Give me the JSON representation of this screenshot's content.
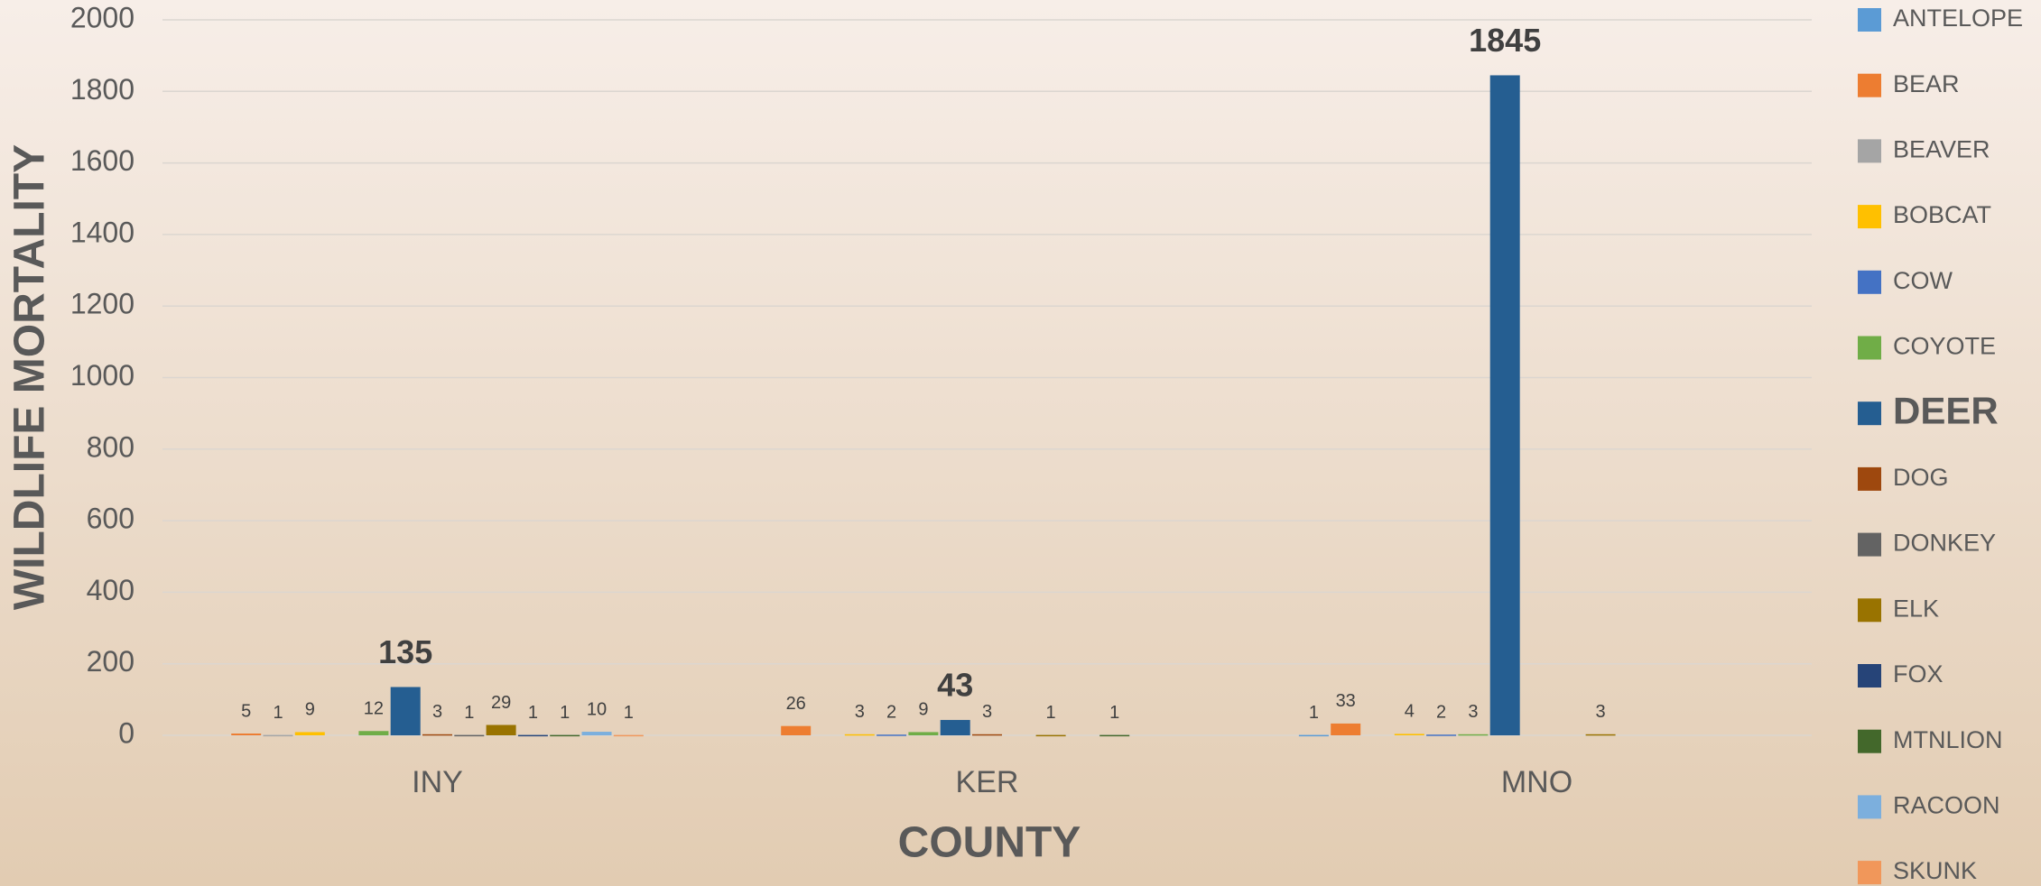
{
  "chart_data": {
    "type": "bar",
    "x_label": "COUNTY",
    "y_label": "WILDLIFE MORTALITY",
    "categories": [
      "INY",
      "KER",
      "MNO"
    ],
    "series": [
      {
        "name": "ANTELOPE",
        "color": "#5b9bd5",
        "values": [
          null,
          null,
          1
        ]
      },
      {
        "name": "BEAR",
        "color": "#ed7d31",
        "values": [
          5,
          26,
          33
        ]
      },
      {
        "name": "BEAVER",
        "color": "#a5a5a5",
        "values": [
          1,
          null,
          null
        ]
      },
      {
        "name": "BOBCAT",
        "color": "#ffc000",
        "values": [
          9,
          3,
          4
        ]
      },
      {
        "name": "COW",
        "color": "#4472c4",
        "values": [
          null,
          2,
          2
        ]
      },
      {
        "name": "COYOTE",
        "color": "#70ad47",
        "values": [
          12,
          9,
          3
        ]
      },
      {
        "name": "DEER",
        "color": "#255e91",
        "values": [
          135,
          43,
          1845
        ]
      },
      {
        "name": "DOG",
        "color": "#9e480e",
        "values": [
          3,
          3,
          null
        ]
      },
      {
        "name": "DONKEY",
        "color": "#636363",
        "values": [
          1,
          null,
          null
        ]
      },
      {
        "name": "ELK",
        "color": "#997300",
        "values": [
          29,
          1,
          3
        ]
      },
      {
        "name": "FOX",
        "color": "#264478",
        "values": [
          1,
          null,
          null
        ]
      },
      {
        "name": "MTNLION",
        "color": "#43682b",
        "values": [
          1,
          1,
          null
        ]
      },
      {
        "name": "RACOON",
        "color": "#7cafdd",
        "values": [
          10,
          null,
          null
        ]
      },
      {
        "name": "SKUNK",
        "color": "#f1975a",
        "values": [
          1,
          null,
          null
        ]
      }
    ],
    "highlight_series": 6,
    "ylim": [
      0,
      2000
    ],
    "yticks": [
      0,
      200,
      400,
      600,
      800,
      1000,
      1200,
      1400,
      1600,
      1800,
      2000
    ],
    "grid": true,
    "legend": "right"
  }
}
